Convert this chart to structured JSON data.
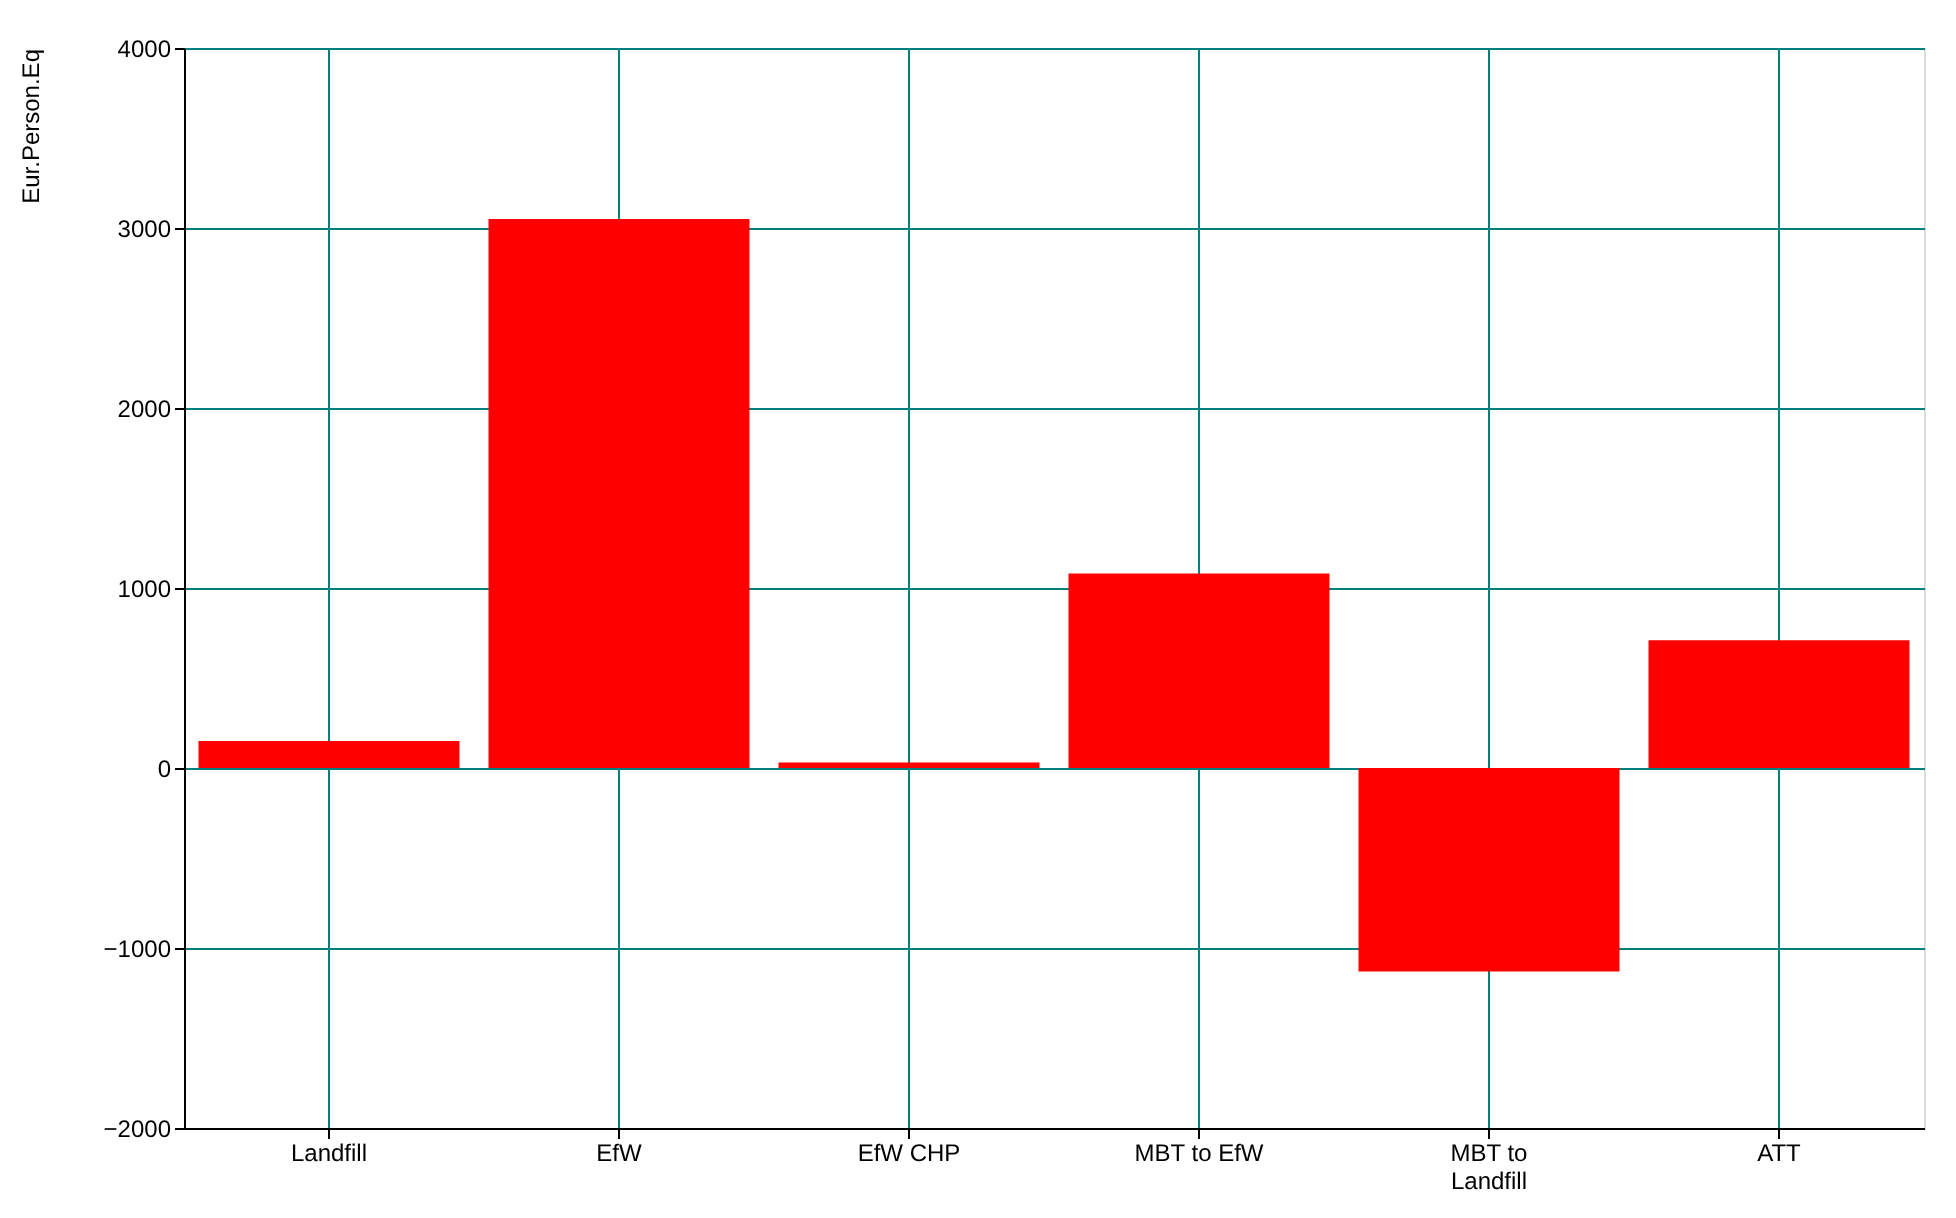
{
  "chart_data": {
    "type": "bar",
    "ylabel": "Eur.Person.Eq",
    "categories": [
      "Landfill",
      "EfW",
      "EfW CHP",
      "MBT to EfW",
      "MBT to Landfill",
      "ATT"
    ],
    "values": [
      150,
      3050,
      30,
      1080,
      -1130,
      710
    ],
    "color": "#ff0000",
    "ylim": [
      -2000,
      4000
    ],
    "yticks": [
      -2000,
      -1000,
      0,
      1000,
      2000,
      3000,
      4000
    ],
    "grid": true
  }
}
